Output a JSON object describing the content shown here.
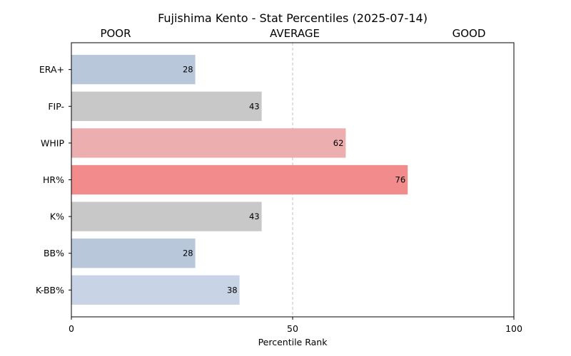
{
  "chart_data": {
    "type": "bar",
    "orientation": "horizontal",
    "title": "Fujishima Kento - Stat Percentiles (2025-07-14)",
    "xlabel": "Percentile Rank",
    "ylabel": "",
    "xlim": [
      0,
      100
    ],
    "xticks": [
      0,
      50,
      100
    ],
    "reference_line": 50,
    "zone_labels": [
      "POOR",
      "AVERAGE",
      "GOOD"
    ],
    "categories": [
      "ERA+",
      "FIP-",
      "WHIP",
      "HR%",
      "K%",
      "BB%",
      "K-BB%"
    ],
    "values": [
      28,
      43,
      62,
      76,
      43,
      28,
      38
    ],
    "bar_colors": [
      "#b8c8da",
      "#c8c8c8",
      "#ecaeae",
      "#f28c8c",
      "#c8c8c8",
      "#b8c8da",
      "#c8d4e6"
    ],
    "grid": false,
    "legend": "none"
  }
}
